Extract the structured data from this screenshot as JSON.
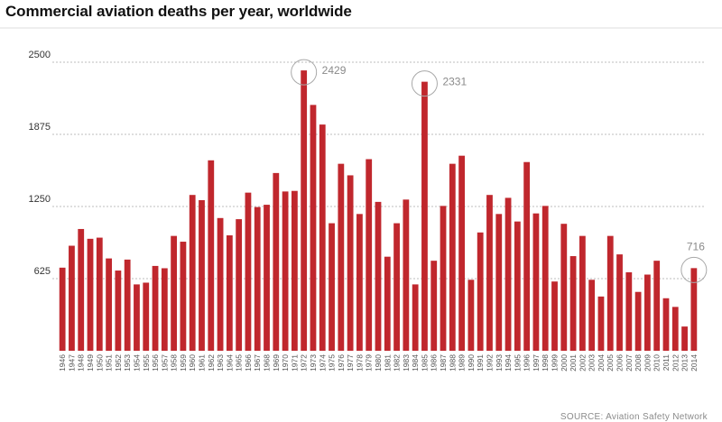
{
  "title": "Commercial aviation deaths per year, worldwide",
  "source": "SOURCE: Aviation Safety Network",
  "colors": {
    "bar": "#c0272d",
    "grid": "#bdbdbd",
    "axis_text": "#555555",
    "annotation": "#8a8a8a"
  },
  "chart_data": {
    "type": "bar",
    "title": "Commercial aviation deaths per year, worldwide",
    "xlabel": "",
    "ylabel": "",
    "ylim": [
      0,
      2500
    ],
    "yticks": [
      625,
      1250,
      1875,
      2500
    ],
    "grid": true,
    "categories": [
      "1946",
      "1947",
      "1948",
      "1949",
      "1950",
      "1951",
      "1952",
      "1953",
      "1954",
      "1955",
      "1956",
      "1957",
      "1958",
      "1959",
      "1960",
      "1961",
      "1962",
      "1963",
      "1964",
      "1965",
      "1966",
      "1967",
      "1968",
      "1969",
      "1970",
      "1971",
      "1972",
      "1973",
      "1974",
      "1975",
      "1976",
      "1977",
      "1978",
      "1979",
      "1980",
      "1981",
      "1982",
      "1983",
      "1984",
      "1985",
      "1986",
      "1987",
      "1988",
      "1989",
      "1990",
      "1991",
      "1992",
      "1993",
      "1994",
      "1995",
      "1996",
      "1997",
      "1998",
      "1999",
      "2000",
      "2001",
      "2002",
      "2003",
      "2004",
      "2005",
      "2006",
      "2007",
      "2008",
      "2009",
      "2010",
      "2011",
      "2012",
      "2013",
      "2014"
    ],
    "values": [
      720,
      910,
      1055,
      970,
      980,
      800,
      695,
      790,
      575,
      590,
      735,
      715,
      995,
      945,
      1350,
      1305,
      1650,
      1150,
      1000,
      1140,
      1370,
      1245,
      1265,
      1540,
      1380,
      1385,
      2429,
      2130,
      1960,
      1105,
      1620,
      1520,
      1185,
      1660,
      1290,
      815,
      1105,
      1310,
      575,
      2331,
      780,
      1255,
      1620,
      1690,
      615,
      1025,
      1350,
      1185,
      1325,
      1120,
      1635,
      1190,
      1255,
      600,
      1100,
      820,
      995,
      615,
      470,
      995,
      835,
      680,
      510,
      660,
      780,
      455,
      380,
      210,
      716
    ],
    "annotations": [
      {
        "category": "1972",
        "label": "2429"
      },
      {
        "category": "1985",
        "label": "2331"
      },
      {
        "category": "2014",
        "label": "716"
      }
    ]
  }
}
